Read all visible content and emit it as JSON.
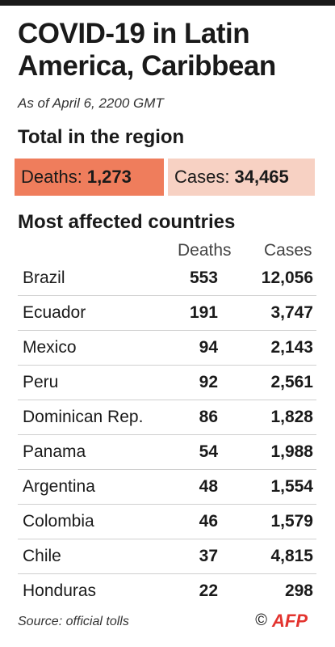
{
  "header": {
    "title": "COVID-19 in Latin America, Caribbean",
    "subtitle": "As of April 6, 2200 GMT"
  },
  "region": {
    "heading": "Total in the region",
    "deaths_label": "Deaths:",
    "deaths_value": "1,273",
    "cases_label": "Cases:",
    "cases_value": "34,465",
    "deaths_color": "#ef7d5c",
    "cases_color": "#f7d1c3"
  },
  "countries": {
    "heading": "Most affected countries",
    "col_deaths": "Deaths",
    "col_cases": "Cases",
    "rows": [
      {
        "name": "Brazil",
        "deaths": "553",
        "cases": "12,056"
      },
      {
        "name": "Ecuador",
        "deaths": "191",
        "cases": "3,747"
      },
      {
        "name": "Mexico",
        "deaths": "94",
        "cases": "2,143"
      },
      {
        "name": "Peru",
        "deaths": "92",
        "cases": "2,561"
      },
      {
        "name": "Dominican Rep.",
        "deaths": "86",
        "cases": "1,828"
      },
      {
        "name": "Panama",
        "deaths": "54",
        "cases": "1,988"
      },
      {
        "name": "Argentina",
        "deaths": "48",
        "cases": "1,554"
      },
      {
        "name": "Colombia",
        "deaths": "46",
        "cases": "1,579"
      },
      {
        "name": "Chile",
        "deaths": "37",
        "cases": "4,815"
      },
      {
        "name": "Honduras",
        "deaths": "22",
        "cases": "298"
      }
    ]
  },
  "footer": {
    "source": "Source: official tolls",
    "copyright": "©",
    "logo_text": "AFP",
    "logo_color": "#e3342f"
  }
}
